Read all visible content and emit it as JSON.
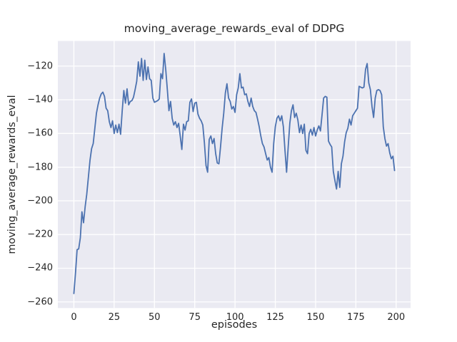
{
  "figure": {
    "title": "moving_average_rewards_eval of DDPG",
    "xlabel": "episodes",
    "ylabel": "moving_average_rewards_eval"
  },
  "style": {
    "figure_bg": "#ffffff",
    "axes_bg": "#eaeaf2",
    "grid_color": "#ffffff",
    "line_color": "#4c72b0",
    "text_color": "#262626",
    "line_width": 1.8
  },
  "chart_data": {
    "type": "line",
    "title": "moving_average_rewards_eval of DDPG",
    "xlabel": "episodes",
    "ylabel": "moving_average_rewards_eval",
    "grid": true,
    "legend_position": "none",
    "xlim": [
      -9.95,
      208.95
    ],
    "ylim": [
      -263.6,
      -105.1
    ],
    "x_ticks": [
      0,
      25,
      50,
      75,
      100,
      125,
      150,
      175,
      200
    ],
    "x_tick_labels": [
      "0",
      "25",
      "50",
      "75",
      "100",
      "125",
      "150",
      "175",
      "200"
    ],
    "y_ticks": [
      -120,
      -140,
      -160,
      -180,
      -200,
      -220,
      -240,
      -260
    ],
    "y_tick_labels": [
      "−120",
      "−140",
      "−160",
      "−180",
      "−200",
      "−220",
      "−240",
      "−260"
    ],
    "series": [
      {
        "name": "moving_average_rewards_eval",
        "x": [
          0,
          1,
          2,
          3,
          4,
          5,
          6,
          7,
          8,
          9,
          10,
          11,
          12,
          13,
          14,
          15,
          16,
          17,
          18,
          19,
          20,
          21,
          22,
          23,
          24,
          25,
          26,
          27,
          28,
          29,
          30,
          31,
          32,
          33,
          34,
          35,
          36,
          37,
          38,
          39,
          40,
          41,
          42,
          43,
          44,
          45,
          46,
          47,
          48,
          49,
          50,
          51,
          52,
          53,
          54,
          55,
          56,
          57,
          58,
          59,
          60,
          61,
          62,
          63,
          64,
          65,
          66,
          67,
          68,
          69,
          70,
          71,
          72,
          73,
          74,
          75,
          76,
          77,
          78,
          79,
          80,
          81,
          82,
          83,
          84,
          85,
          86,
          87,
          88,
          89,
          90,
          91,
          92,
          93,
          94,
          95,
          96,
          97,
          98,
          99,
          100,
          101,
          102,
          103,
          104,
          105,
          106,
          107,
          108,
          109,
          110,
          111,
          112,
          113,
          114,
          115,
          116,
          117,
          118,
          119,
          120,
          121,
          122,
          123,
          124,
          125,
          126,
          127,
          128,
          129,
          130,
          131,
          132,
          133,
          134,
          135,
          136,
          137,
          138,
          139,
          140,
          141,
          142,
          143,
          144,
          145,
          146,
          147,
          148,
          149,
          150,
          151,
          152,
          153,
          154,
          155,
          156,
          157,
          158,
          159,
          160,
          161,
          162,
          163,
          164,
          165,
          166,
          167,
          168,
          169,
          170,
          171,
          172,
          173,
          174,
          175,
          176,
          177,
          178,
          179,
          180,
          181,
          182,
          183,
          184,
          185,
          186,
          187,
          188,
          189,
          190,
          191,
          192,
          193,
          194,
          195,
          196,
          197,
          198,
          199
        ],
        "y": [
          -255,
          -243,
          -229,
          -228.5,
          -222,
          -206.5,
          -213,
          -203.5,
          -196,
          -186,
          -176,
          -169,
          -166,
          -157,
          -148,
          -143,
          -139,
          -136.5,
          -135.5,
          -138,
          -145,
          -146.5,
          -153,
          -156.5,
          -152.5,
          -160,
          -155,
          -159.5,
          -154.5,
          -160.5,
          -146.5,
          -134.5,
          -142,
          -133.5,
          -143,
          -141,
          -140.5,
          -138.5,
          -134,
          -129,
          -117.5,
          -126,
          -115.5,
          -128.5,
          -116.5,
          -128,
          -120.5,
          -127.5,
          -128.5,
          -139,
          -141.5,
          -141,
          -140.5,
          -139.5,
          -124.5,
          -127.5,
          -112.5,
          -122,
          -134,
          -146.5,
          -141,
          -151,
          -155,
          -153,
          -156.5,
          -154,
          -161.5,
          -169.5,
          -154.5,
          -158,
          -153,
          -152.5,
          -141.5,
          -139.5,
          -147,
          -142,
          -141.5,
          -148.5,
          -151,
          -152.5,
          -155,
          -165.5,
          -179,
          -183,
          -163.5,
          -161.5,
          -166,
          -163,
          -172,
          -177.5,
          -178,
          -168,
          -157,
          -148,
          -136,
          -130.5,
          -139,
          -141,
          -145.5,
          -144,
          -147.5,
          -137,
          -133,
          -124.5,
          -133,
          -132.5,
          -137,
          -136.5,
          -141,
          -144,
          -139,
          -144,
          -146.5,
          -147.5,
          -151.5,
          -156,
          -161.5,
          -166,
          -168,
          -172,
          -175.8,
          -174.3,
          -180,
          -183,
          -166,
          -156,
          -151,
          -149.5,
          -152.5,
          -149.5,
          -156,
          -170,
          -183,
          -168,
          -154,
          -146.5,
          -143,
          -150.5,
          -148,
          -152,
          -159.5,
          -155,
          -160,
          -154.5,
          -170,
          -172,
          -160,
          -157.5,
          -161,
          -156.5,
          -161.5,
          -158,
          -155.5,
          -158.5,
          -149,
          -139,
          -138,
          -138.5,
          -164.5,
          -166.5,
          -168,
          -182.5,
          -188,
          -193,
          -182.5,
          -192,
          -178,
          -173.5,
          -165,
          -159.5,
          -157,
          -151.5,
          -155,
          -149.5,
          -148,
          -146.5,
          -145,
          -132,
          -132.5,
          -133,
          -132.5,
          -122,
          -118.5,
          -130,
          -134,
          -144,
          -150.5,
          -139,
          -134.5,
          -134,
          -134.5,
          -137,
          -156,
          -163,
          -167.5,
          -166,
          -171.5,
          -175,
          -173.5,
          -182
        ]
      }
    ]
  }
}
